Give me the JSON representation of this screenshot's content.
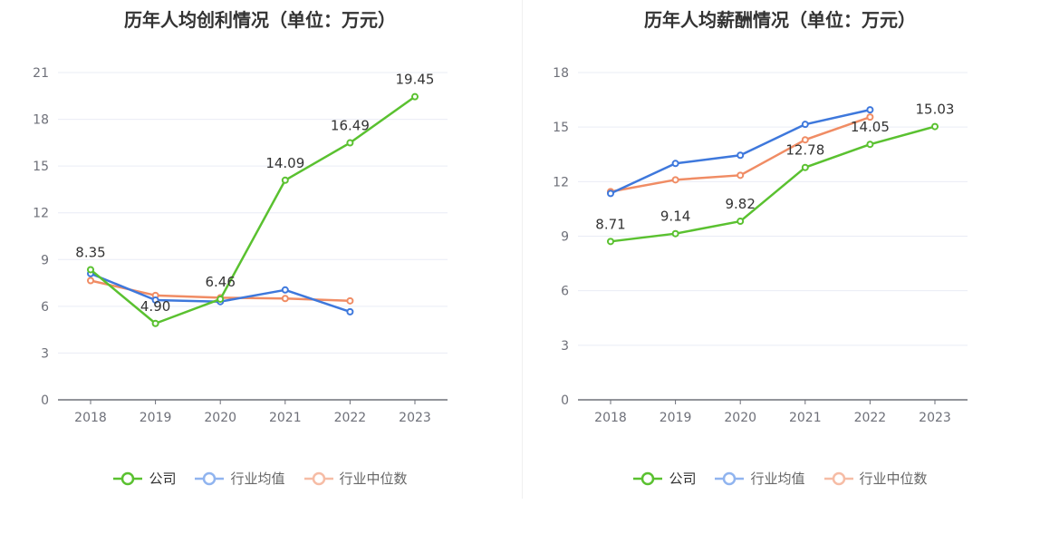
{
  "colors": {
    "company": "#5ac130",
    "avg": "#3e78dc",
    "median": "#f08c64",
    "avg_legend": "#90b4ef",
    "median_legend": "#f6bca5",
    "grid": "#e9ecf5",
    "axis": "#6e7079"
  },
  "legend": {
    "company": "公司",
    "avg": "行业均值",
    "median": "行业中位数"
  },
  "chart_data": [
    {
      "type": "line",
      "title": "历年人均创利情况（单位：万元）",
      "categories": [
        "2018",
        "2019",
        "2020",
        "2021",
        "2022",
        "2023"
      ],
      "ylim": [
        0,
        21
      ],
      "yticks": [
        0,
        3,
        6,
        9,
        12,
        15,
        18,
        21
      ],
      "grid": true,
      "legend_position": "bottom",
      "series": [
        {
          "name": "公司",
          "key": "company",
          "values": [
            8.35,
            4.9,
            6.46,
            14.09,
            16.49,
            19.45
          ],
          "labels": [
            "8.35",
            "4.90",
            "6.46",
            "14.09",
            "16.49",
            "19.45"
          ]
        },
        {
          "name": "行业均值",
          "key": "avg",
          "values": [
            8.1,
            6.4,
            6.3,
            7.05,
            5.65,
            null
          ]
        },
        {
          "name": "行业中位数",
          "key": "median",
          "values": [
            7.65,
            6.7,
            6.55,
            6.5,
            6.35,
            null
          ]
        }
      ]
    },
    {
      "type": "line",
      "title": "历年人均薪酬情况（单位：万元）",
      "categories": [
        "2018",
        "2019",
        "2020",
        "2021",
        "2022",
        "2023"
      ],
      "ylim": [
        0,
        18
      ],
      "yticks": [
        0,
        3,
        6,
        9,
        12,
        15,
        18
      ],
      "grid": true,
      "legend_position": "bottom",
      "series": [
        {
          "name": "公司",
          "key": "company",
          "values": [
            8.71,
            9.14,
            9.82,
            12.78,
            14.05,
            15.03
          ],
          "labels": [
            "8.71",
            "9.14",
            "9.82",
            "12.78",
            "14.05",
            "15.03"
          ]
        },
        {
          "name": "行业均值",
          "key": "avg",
          "values": [
            11.35,
            13.0,
            13.45,
            15.15,
            15.95,
            null
          ]
        },
        {
          "name": "行业中位数",
          "key": "median",
          "values": [
            11.45,
            12.1,
            12.35,
            14.3,
            15.55,
            null
          ]
        }
      ]
    }
  ]
}
